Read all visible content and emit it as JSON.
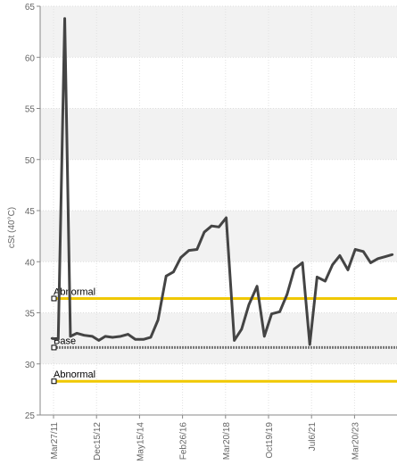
{
  "chart_data": {
    "type": "line",
    "title": "",
    "xlabel": "",
    "ylabel": "cSt (40°C)",
    "ylim": [
      25,
      65
    ],
    "y_ticks": [
      25,
      30,
      35,
      40,
      45,
      50,
      55,
      60,
      65
    ],
    "x_tick_labels": [
      "Mar27/11",
      "Dec15/12",
      "May15/14",
      "Feb26/16",
      "Mar20/18",
      "Oct19/19",
      "Jul6/21",
      "Mar20/23"
    ],
    "grid": true,
    "series": [
      {
        "color": "#444444",
        "x": [
          0,
          0.8,
          1.6,
          2.3,
          3.1,
          4.0,
          5.0,
          5.8,
          6.6,
          7.5,
          8.5,
          9.4,
          10.3,
          11.3,
          12.2,
          13.1,
          14.1,
          15.0,
          15.9,
          16.9,
          17.9,
          18.8,
          19.7,
          20.6,
          21.5,
          22.5,
          23.4,
          24.3,
          25.3,
          26.2,
          27.1,
          28.1,
          29.0,
          29.9,
          30.9,
          31.8,
          32.7,
          33.7,
          34.6,
          35.5,
          36.5,
          37.4,
          38.4,
          39.3,
          40.2,
          41.1,
          42.0
        ],
        "values": [
          32.5,
          32.4,
          63.8,
          32.7,
          33.0,
          32.8,
          32.7,
          32.3,
          32.7,
          32.6,
          32.7,
          32.9,
          32.4,
          32.4,
          32.6,
          34.3,
          38.6,
          39.0,
          40.4,
          41.1,
          41.2,
          42.9,
          43.5,
          43.4,
          44.3,
          32.3,
          33.4,
          35.8,
          37.6,
          32.7,
          34.9,
          35.1,
          36.8,
          39.3,
          39.9,
          31.9,
          38.5,
          38.1,
          39.7,
          40.6,
          39.2,
          41.2,
          41.0,
          39.9,
          40.3,
          40.5,
          40.7
        ]
      }
    ],
    "reference_lines": [
      {
        "label": "Abnormal",
        "value": 36.4,
        "color": "#f0c800"
      },
      {
        "label": "Base",
        "value": 31.6,
        "color": "#777777"
      },
      {
        "label": "Abnormal",
        "value": 28.3,
        "color": "#f0c800"
      }
    ]
  }
}
